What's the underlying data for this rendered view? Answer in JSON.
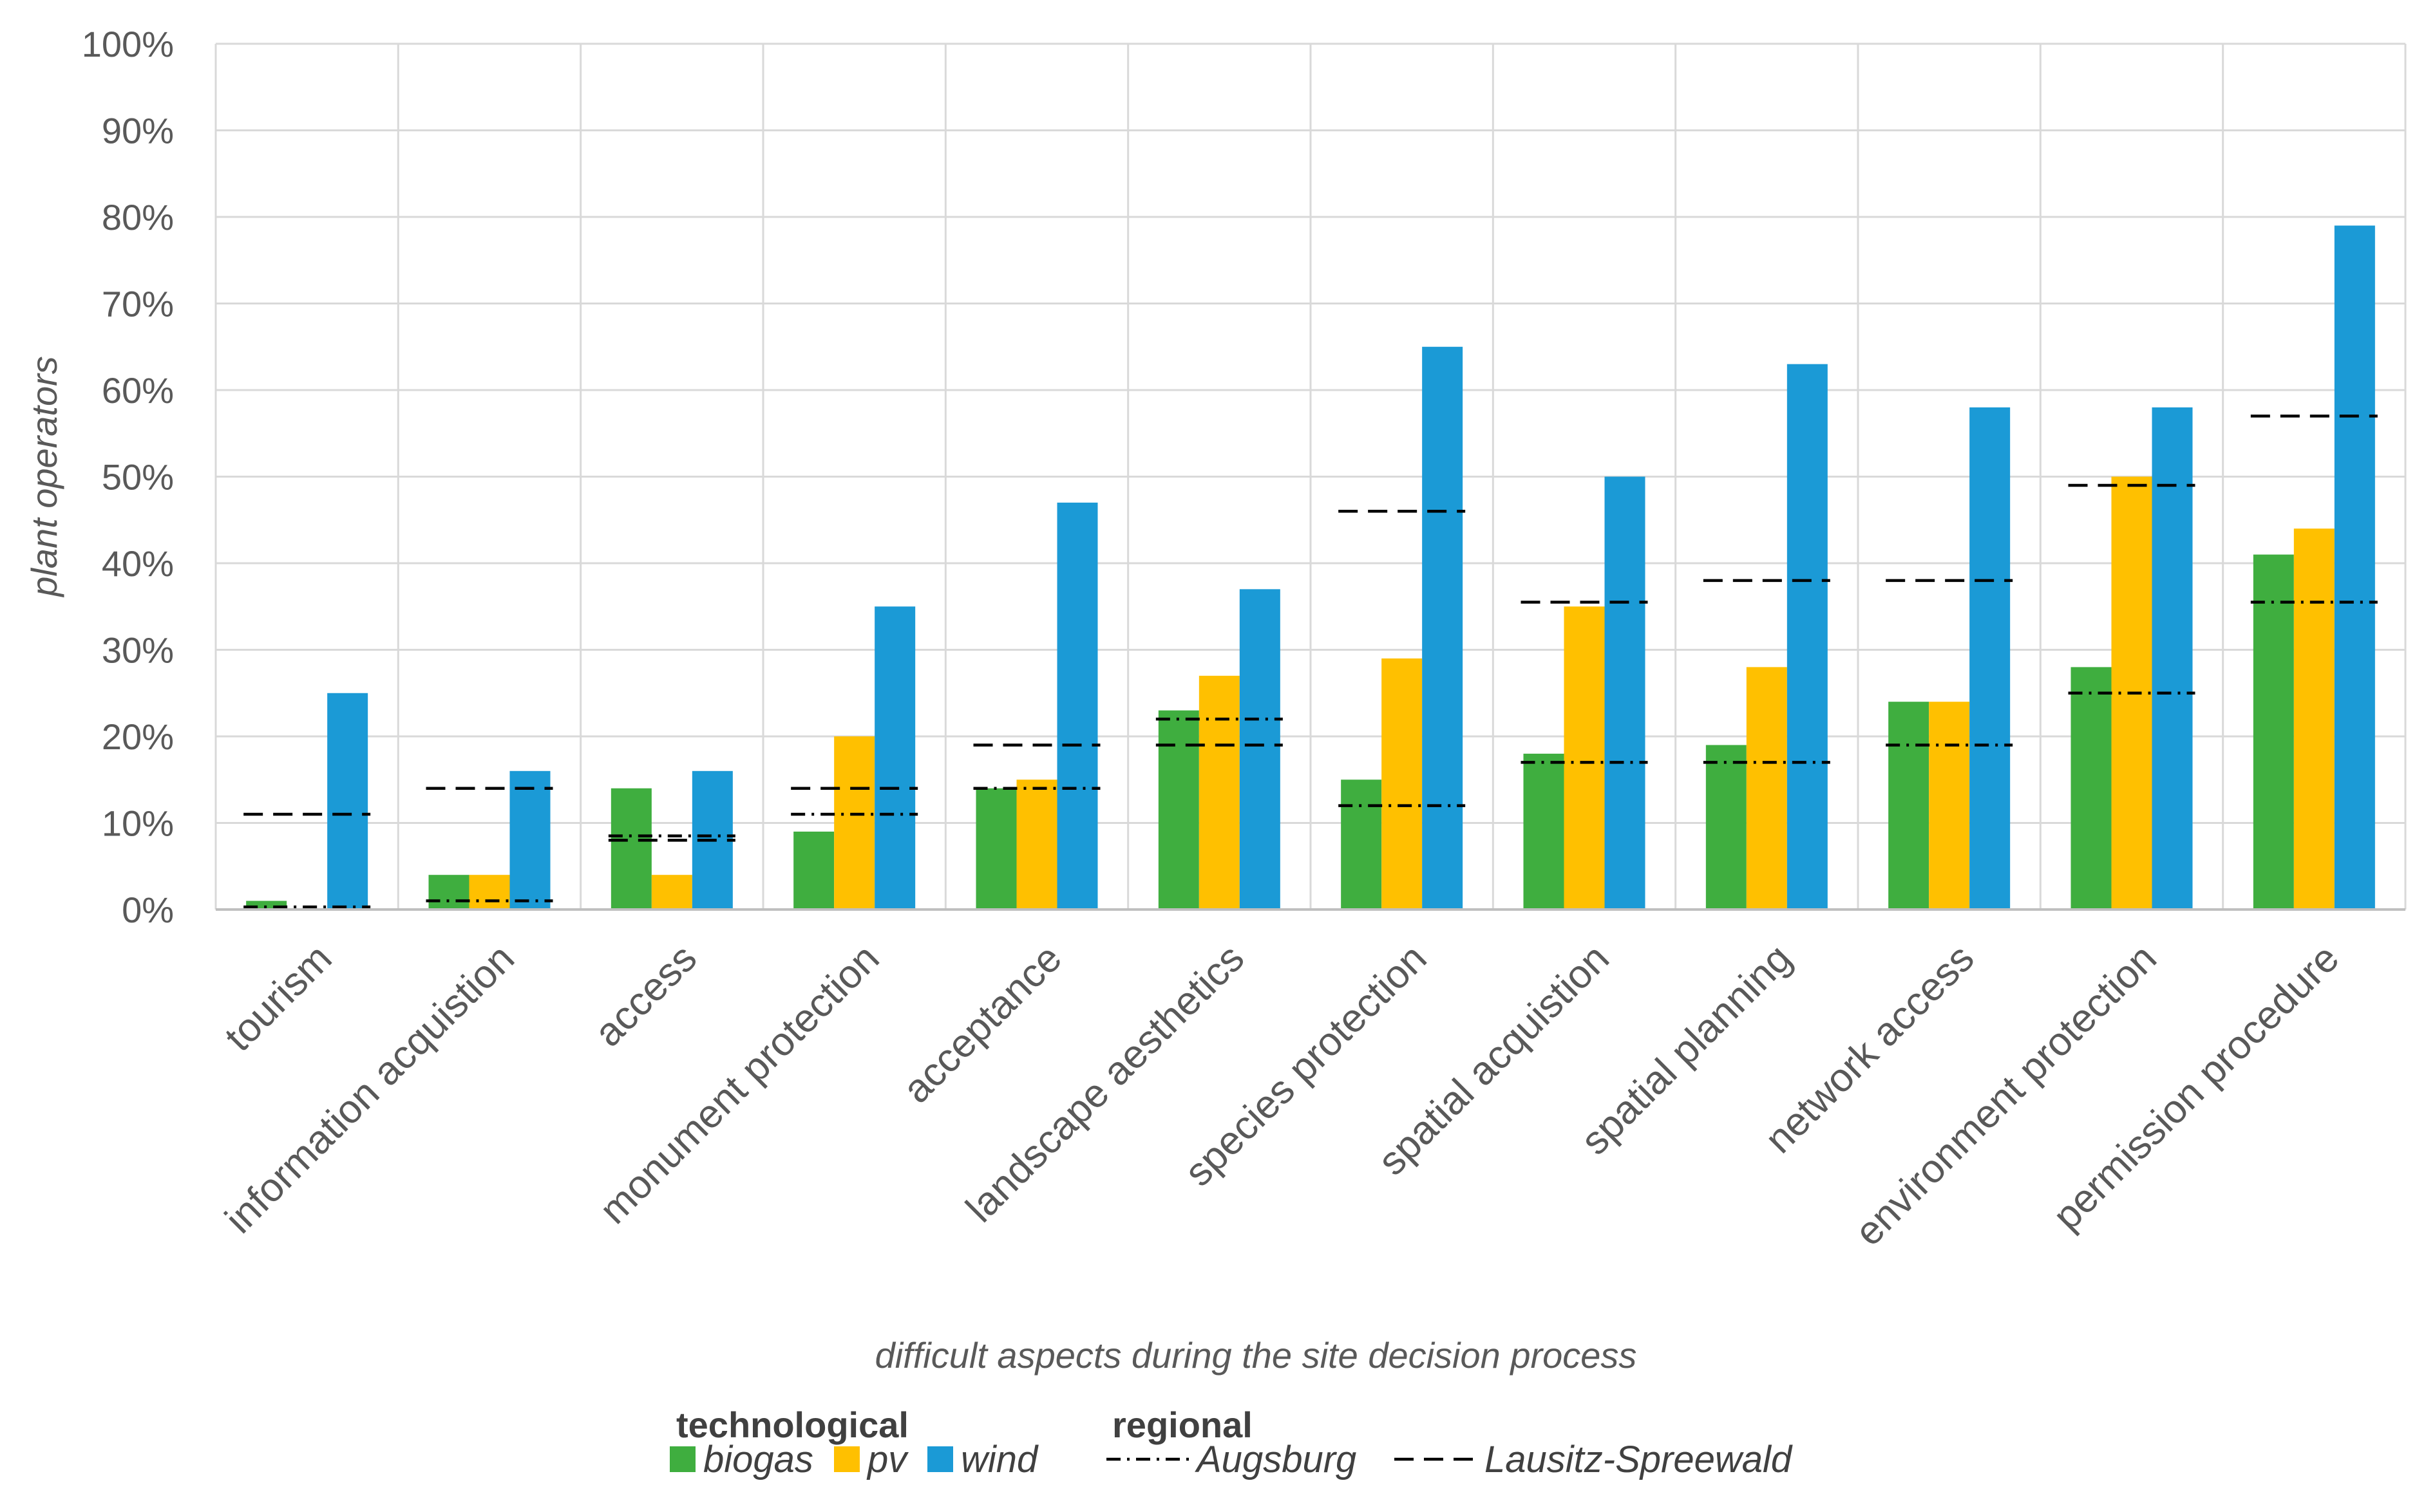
{
  "chart_data": {
    "type": "bar",
    "title": "",
    "xlabel": "difficult aspects during the site decision process",
    "ylabel": "plant operators",
    "ylim": [
      0,
      100
    ],
    "yticks": [
      "0%",
      "10%",
      "20%",
      "30%",
      "40%",
      "50%",
      "60%",
      "70%",
      "80%",
      "90%",
      "100%"
    ],
    "categories": [
      "tourism",
      "information acquistion",
      "access",
      "monument protection",
      "acceptance",
      "landscape aesthetics",
      "species protection",
      "spatial acquistion",
      "spatial planning",
      "network access",
      "environment protection",
      "permission procedure"
    ],
    "series": [
      {
        "name": "biogas",
        "kind": "bar",
        "color": "#3fae3f",
        "values": [
          1,
          4,
          14,
          9,
          14,
          23,
          15,
          18,
          19,
          24,
          28,
          41
        ]
      },
      {
        "name": "pv",
        "kind": "bar",
        "color": "#ffc000",
        "values": [
          0,
          4,
          4,
          20,
          15,
          27,
          29,
          35,
          28,
          24,
          50,
          44
        ]
      },
      {
        "name": "wind",
        "kind": "bar",
        "color": "#1b9ad6",
        "values": [
          25,
          16,
          16,
          35,
          47,
          37,
          65,
          50,
          63,
          58,
          58,
          79
        ]
      },
      {
        "name": "Augsburg",
        "kind": "dashdot",
        "color": "#000000",
        "values": [
          0.3,
          1,
          8.5,
          11,
          14,
          22,
          12,
          17,
          17,
          19,
          25,
          35.5
        ]
      },
      {
        "name": "Lausitz-Spreewald",
        "kind": "dash",
        "color": "#000000",
        "values": [
          11,
          14,
          8,
          14,
          19,
          19,
          46,
          35.5,
          38,
          38,
          49,
          57
        ]
      }
    ],
    "legend": {
      "placement": "bottom",
      "technological_title": "technological",
      "regional_title": "regional"
    }
  }
}
